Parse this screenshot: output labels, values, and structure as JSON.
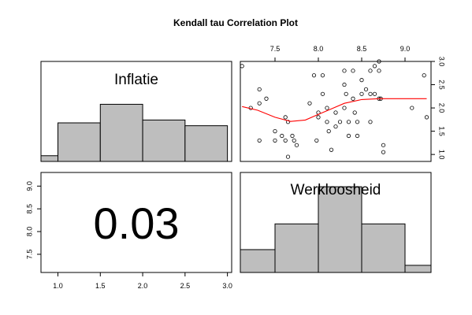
{
  "title": "Kendall tau Correlation Plot",
  "chart_data": [
    {
      "type": "histogram",
      "label": "Inflatie",
      "bins": [
        {
          "x0": 0.8,
          "x1": 1.0,
          "height": 0.04
        },
        {
          "x0": 1.0,
          "x1": 1.5,
          "height": 0.27
        },
        {
          "x0": 1.5,
          "x1": 2.0,
          "height": 0.4
        },
        {
          "x0": 2.0,
          "x1": 2.5,
          "height": 0.29
        },
        {
          "x0": 2.5,
          "x1": 3.0,
          "height": 0.25
        }
      ],
      "xlim": [
        0.8,
        3.05
      ],
      "xticks": [
        1.0,
        1.5,
        2.0,
        2.5,
        3.0
      ]
    },
    {
      "type": "scatter",
      "x_variable": "Werkloosheid",
      "y_variable": "Inflatie",
      "xlim": [
        7.1,
        9.3
      ],
      "ylim": [
        0.85,
        3.0
      ],
      "xticks": [
        7.5,
        8.0,
        8.5,
        9.0
      ],
      "yticks": [
        1.0,
        1.5,
        2.0,
        2.5,
        3.0
      ],
      "points": [
        [
          7.12,
          2.9
        ],
        [
          7.22,
          2.0
        ],
        [
          7.32,
          2.4
        ],
        [
          7.32,
          2.1
        ],
        [
          7.32,
          1.3
        ],
        [
          7.4,
          2.2
        ],
        [
          7.5,
          1.5
        ],
        [
          7.5,
          1.3
        ],
        [
          7.58,
          1.4
        ],
        [
          7.62,
          1.8
        ],
        [
          7.65,
          1.7
        ],
        [
          7.62,
          1.3
        ],
        [
          7.65,
          0.95
        ],
        [
          7.7,
          1.4
        ],
        [
          7.72,
          1.3
        ],
        [
          7.75,
          1.2
        ],
        [
          7.9,
          2.1
        ],
        [
          7.95,
          2.7
        ],
        [
          8.0,
          1.9
        ],
        [
          8.0,
          1.8
        ],
        [
          7.98,
          1.3
        ],
        [
          8.05,
          2.7
        ],
        [
          8.05,
          2.3
        ],
        [
          8.1,
          2.0
        ],
        [
          8.1,
          1.7
        ],
        [
          8.12,
          1.5
        ],
        [
          8.15,
          1.1
        ],
        [
          8.2,
          1.9
        ],
        [
          8.2,
          1.6
        ],
        [
          8.25,
          1.7
        ],
        [
          8.3,
          2.8
        ],
        [
          8.3,
          2.5
        ],
        [
          8.3,
          2.0
        ],
        [
          8.32,
          2.3
        ],
        [
          8.35,
          1.7
        ],
        [
          8.35,
          1.4
        ],
        [
          8.4,
          2.8
        ],
        [
          8.4,
          2.2
        ],
        [
          8.42,
          1.9
        ],
        [
          8.45,
          1.7
        ],
        [
          8.45,
          1.4
        ],
        [
          8.5,
          2.6
        ],
        [
          8.5,
          2.3
        ],
        [
          8.55,
          2.4
        ],
        [
          8.6,
          2.8
        ],
        [
          8.6,
          2.3
        ],
        [
          8.6,
          1.7
        ],
        [
          8.65,
          2.9
        ],
        [
          8.65,
          2.3
        ],
        [
          8.7,
          3.0
        ],
        [
          8.7,
          2.8
        ],
        [
          8.7,
          2.2
        ],
        [
          8.75,
          1.2
        ],
        [
          8.75,
          1.05
        ],
        [
          8.72,
          2.2
        ],
        [
          9.08,
          2.0
        ],
        [
          9.22,
          2.7
        ],
        [
          9.25,
          1.8
        ]
      ],
      "smoother": [
        [
          7.12,
          2.03
        ],
        [
          7.3,
          1.95
        ],
        [
          7.5,
          1.8
        ],
        [
          7.68,
          1.71
        ],
        [
          7.85,
          1.74
        ],
        [
          8.0,
          1.86
        ],
        [
          8.15,
          1.98
        ],
        [
          8.3,
          2.1
        ],
        [
          8.5,
          2.18
        ],
        [
          8.7,
          2.2
        ],
        [
          8.9,
          2.2
        ],
        [
          9.1,
          2.2
        ],
        [
          9.25,
          2.2
        ]
      ],
      "point_color": "#000000",
      "smoother_color": "#ff0000"
    },
    {
      "type": "text",
      "value": "0.03",
      "description": "Kendall tau",
      "xlim": [
        0.8,
        3.05
      ],
      "ylim": [
        7.1,
        9.3
      ],
      "xticks": [
        1.0,
        1.5,
        2.0,
        2.5,
        3.0
      ],
      "yticks": [
        7.5,
        8.0,
        8.5,
        9.0
      ]
    },
    {
      "type": "histogram",
      "label": "Werkloosheid",
      "bins": [
        {
          "x0": 7.1,
          "x1": 7.5,
          "height": 0.16
        },
        {
          "x0": 7.5,
          "x1": 8.0,
          "height": 0.34
        },
        {
          "x0": 8.0,
          "x1": 8.5,
          "height": 0.6
        },
        {
          "x0": 8.5,
          "x1": 9.0,
          "height": 0.34
        },
        {
          "x0": 9.0,
          "x1": 9.5,
          "height": 0.05
        }
      ],
      "xlim": [
        7.1,
        9.3
      ]
    }
  ],
  "colors": {
    "bar_fill": "#bebebe",
    "border": "#000000"
  }
}
